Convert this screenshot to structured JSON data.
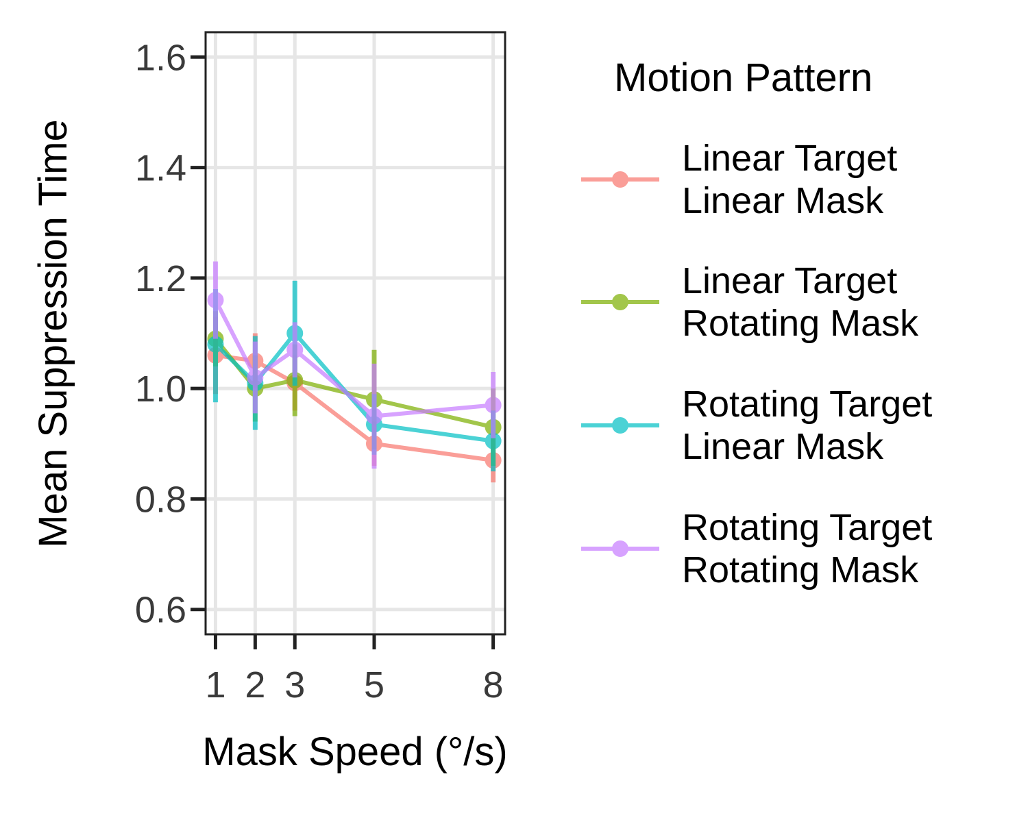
{
  "chart_data": {
    "type": "line",
    "xlabel": "Mask Speed (°/s)",
    "ylabel": "Mean Suppression Time",
    "x": [
      1,
      2,
      3,
      5,
      8
    ],
    "x_ticks": [
      "1",
      "2",
      "3",
      "5",
      "8"
    ],
    "y_ticks": [
      "0.6",
      "0.8",
      "1.0",
      "1.2",
      "1.4",
      "1.6"
    ],
    "xlim": [
      0.75,
      8.3
    ],
    "ylim": [
      0.555,
      1.645
    ],
    "grid": true,
    "legend": {
      "title": "Motion Pattern",
      "position": "right"
    },
    "series": [
      {
        "name": "Linear Target\nLinear Mask",
        "color": "#F8766D",
        "values": [
          1.06,
          1.05,
          1.01,
          0.9,
          0.87
        ],
        "err_low": [
          0.99,
          1.0,
          0.96,
          0.86,
          0.83
        ],
        "err_high": [
          1.13,
          1.1,
          1.06,
          0.94,
          0.91
        ]
      },
      {
        "name": "Linear Target\nRotating Mask",
        "color": "#7CAE00",
        "values": [
          1.09,
          1.0,
          1.015,
          0.98,
          0.93
        ],
        "err_low": [
          1.04,
          0.94,
          0.95,
          0.89,
          0.86
        ],
        "err_high": [
          1.14,
          1.06,
          1.08,
          1.07,
          1.0
        ]
      },
      {
        "name": "Rotating Target\nLinear Mask",
        "color": "#00BFC4",
        "values": [
          1.08,
          1.01,
          1.1,
          0.935,
          0.905
        ],
        "err_low": [
          0.975,
          0.925,
          1.005,
          0.88,
          0.85
        ],
        "err_high": [
          1.18,
          1.095,
          1.195,
          0.99,
          0.96
        ]
      },
      {
        "name": "Rotating Target\nRotating Mask",
        "color": "#C77CFF",
        "values": [
          1.16,
          1.02,
          1.07,
          0.95,
          0.97
        ],
        "err_low": [
          1.09,
          0.955,
          1.02,
          0.855,
          0.91
        ],
        "err_high": [
          1.23,
          1.085,
          1.12,
          1.045,
          1.03
        ]
      }
    ]
  }
}
